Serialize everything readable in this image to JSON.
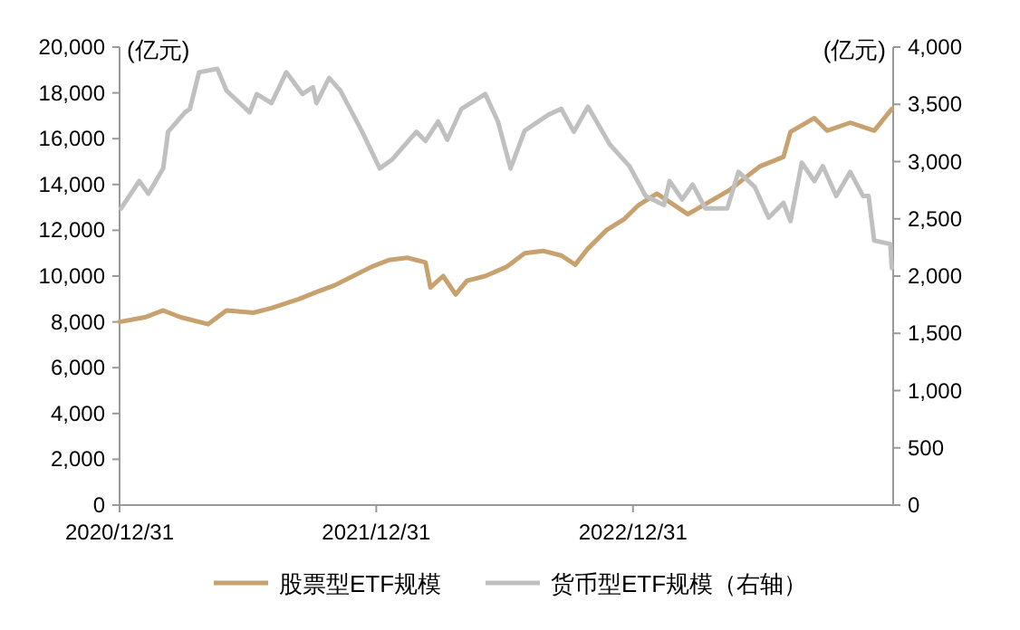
{
  "chart_data": {
    "type": "line",
    "ylabel": "(亿元)",
    "y2label": "(亿元)",
    "legend": "bottom",
    "grid": false,
    "xlim": [
      "2020-12-31",
      "2024-01-05"
    ],
    "xticks": [
      {
        "value": "2020-12-31",
        "label": "2020/12/31"
      },
      {
        "value": "2021-12-31",
        "label": "2021/12/31"
      },
      {
        "value": "2022-12-31",
        "label": "2022/12/31"
      }
    ],
    "ylim": [
      0,
      20000
    ],
    "yticks": [
      {
        "value": 0,
        "label": "0"
      },
      {
        "value": 2000,
        "label": "2,000"
      },
      {
        "value": 4000,
        "label": "4,000"
      },
      {
        "value": 6000,
        "label": "6,000"
      },
      {
        "value": 8000,
        "label": "8,000"
      },
      {
        "value": 10000,
        "label": "10,000"
      },
      {
        "value": 12000,
        "label": "12,000"
      },
      {
        "value": 14000,
        "label": "14,000"
      },
      {
        "value": 16000,
        "label": "16,000"
      },
      {
        "value": 18000,
        "label": "18,000"
      },
      {
        "value": 20000,
        "label": "20,000"
      }
    ],
    "y2lim": [
      0,
      4000
    ],
    "y2ticks": [
      {
        "value": 0,
        "label": "0"
      },
      {
        "value": 500,
        "label": "500"
      },
      {
        "value": 1000,
        "label": "1,000"
      },
      {
        "value": 1500,
        "label": "1,500"
      },
      {
        "value": 2000,
        "label": "2,000"
      },
      {
        "value": 2500,
        "label": "2,500"
      },
      {
        "value": 3000,
        "label": "3,000"
      },
      {
        "value": 3500,
        "label": "3,500"
      },
      {
        "value": 4000,
        "label": "4,000"
      }
    ],
    "series": [
      {
        "name": "股票型ETF规模",
        "color": "#c8a26e",
        "x": [
          "2020-12-31",
          "2021-02-05",
          "2021-03-03",
          "2021-03-28",
          "2021-05-06",
          "2021-06-01",
          "2021-07-09",
          "2021-08-04",
          "2021-09-12",
          "2021-10-07",
          "2021-11-02",
          "2021-11-28",
          "2021-12-24",
          "2022-01-18",
          "2022-02-13",
          "2022-03-11",
          "2022-03-18",
          "2022-04-05",
          "2022-04-23",
          "2022-05-09",
          "2022-06-04",
          "2022-07-04",
          "2022-07-30",
          "2022-08-25",
          "2022-09-20",
          "2022-10-10",
          "2022-10-28",
          "2022-11-23",
          "2022-12-19",
          "2023-01-08",
          "2023-02-03",
          "2023-03-19",
          "2023-05-17",
          "2023-06-30",
          "2023-08-02",
          "2023-08-12",
          "2023-09-15",
          "2023-10-03",
          "2023-11-05",
          "2023-12-09",
          "2024-01-03"
        ],
        "values": [
          8000,
          8200,
          8500,
          8200,
          7900,
          8500,
          8400,
          8600,
          9000,
          9300,
          9600,
          10000,
          10400,
          10700,
          10800,
          10600,
          9500,
          10000,
          9200,
          9800,
          10000,
          10400,
          11000,
          11100,
          10900,
          10500,
          11200,
          12000,
          12500,
          13100,
          13600,
          12700,
          13750,
          14800,
          15200,
          16300,
          16900,
          16350,
          16700,
          16350,
          17300
        ]
      },
      {
        "name": "货币型ETF规模（右轴）",
        "color": "#c0c0c0",
        "axis": "y2",
        "x": [
          "2021-01-02",
          "2021-01-28",
          "2021-02-10",
          "2021-03-03",
          "2021-03-10",
          "2021-04-03",
          "2021-04-10",
          "2021-04-23",
          "2021-05-19",
          "2021-06-01",
          "2021-07-04",
          "2021-07-14",
          "2021-08-04",
          "2021-08-25",
          "2021-09-17",
          "2021-10-02",
          "2021-10-07",
          "2021-10-25",
          "2021-11-10",
          "2021-12-11",
          "2022-01-05",
          "2022-01-23",
          "2022-02-26",
          "2022-03-11",
          "2022-03-29",
          "2022-04-11",
          "2022-05-01",
          "2022-06-04",
          "2022-06-22",
          "2022-07-10",
          "2022-07-30",
          "2022-09-02",
          "2022-09-20",
          "2022-10-08",
          "2022-10-28",
          "2022-11-28",
          "2022-12-26",
          "2023-01-18",
          "2023-02-13",
          "2023-02-21",
          "2023-03-11",
          "2023-03-26",
          "2023-04-13",
          "2023-05-14",
          "2023-05-30",
          "2023-06-22",
          "2023-07-12",
          "2023-08-02",
          "2023-08-12",
          "2023-08-28",
          "2023-09-15",
          "2023-09-27",
          "2023-10-16",
          "2023-11-05",
          "2023-11-23",
          "2023-12-01",
          "2023-12-09",
          "2024-01-01",
          "2024-01-03"
        ],
        "values": [
          2590,
          2830,
          2720,
          2940,
          3260,
          3430,
          3460,
          3780,
          3810,
          3620,
          3430,
          3590,
          3510,
          3780,
          3590,
          3650,
          3510,
          3730,
          3620,
          3260,
          2940,
          3020,
          3260,
          3180,
          3350,
          3190,
          3460,
          3590,
          3350,
          2940,
          3270,
          3410,
          3460,
          3260,
          3480,
          3150,
          2960,
          2700,
          2620,
          2830,
          2670,
          2800,
          2590,
          2590,
          2910,
          2780,
          2510,
          2640,
          2480,
          2990,
          2830,
          2960,
          2700,
          2910,
          2700,
          2700,
          2310,
          2280,
          2070
        ]
      }
    ]
  }
}
